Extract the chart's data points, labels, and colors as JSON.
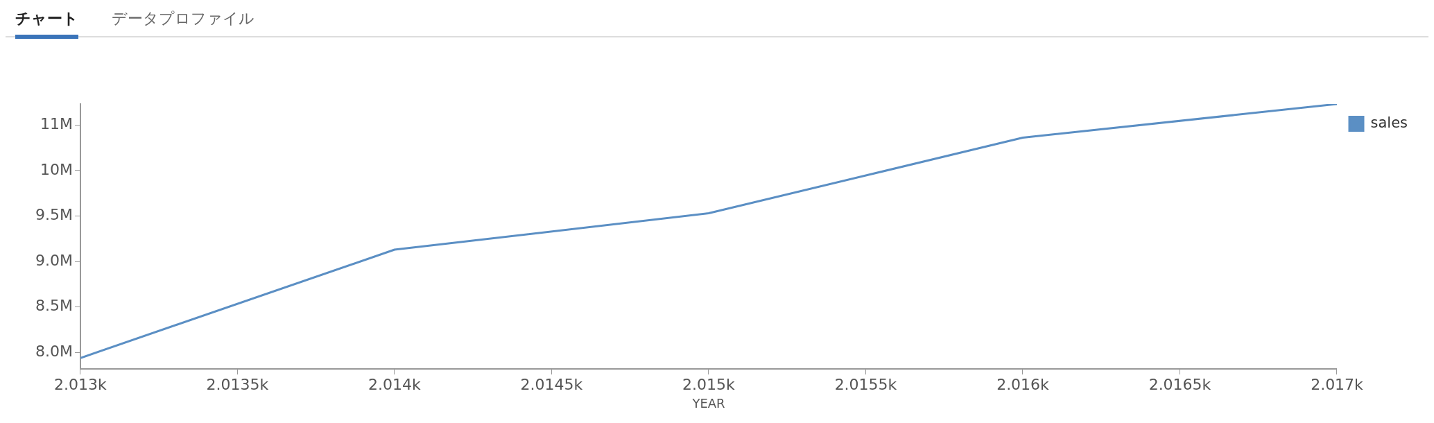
{
  "chart_data": {
    "type": "line",
    "annotations": [
      "チャート",
      "データプロファイル"
    ],
    "xlabel": "YEAR",
    "x": [
      2013,
      2014,
      2015,
      2016,
      2017
    ],
    "series": [
      {
        "name": "sales",
        "color": "#5b8fc4",
        "values": [
          7940000,
          9130000,
          9530000,
          10360000,
          10730000
        ]
      }
    ],
    "xlim": [
      2013,
      2017
    ],
    "xticks": [
      {
        "value": 2013,
        "label": "2.013k"
      },
      {
        "value": 2013.5,
        "label": "2.0135k"
      },
      {
        "value": 2014,
        "label": "2.014k"
      },
      {
        "value": 2014.5,
        "label": "2.0145k"
      },
      {
        "value": 2015,
        "label": "2.015k"
      },
      {
        "value": 2015.5,
        "label": "2.0155k"
      },
      {
        "value": 2016,
        "label": "2.016k"
      },
      {
        "value": 2016.5,
        "label": "2.0165k"
      },
      {
        "value": 2017,
        "label": "2.017k"
      }
    ],
    "ylim": [
      7820000,
      10730000
    ],
    "yticks": [
      {
        "value": 8000000,
        "label": "8.0M"
      },
      {
        "value": 8500000,
        "label": "8.5M"
      },
      {
        "value": 9000000,
        "label": "9.0M"
      },
      {
        "value": 9500000,
        "label": "9.5M"
      },
      {
        "value": 10000000,
        "label": "10M"
      },
      {
        "value": 10500000,
        "label": "11M"
      }
    ],
    "grid": false,
    "legend": "top right",
    "marker": "none",
    "line_style": "solid"
  }
}
